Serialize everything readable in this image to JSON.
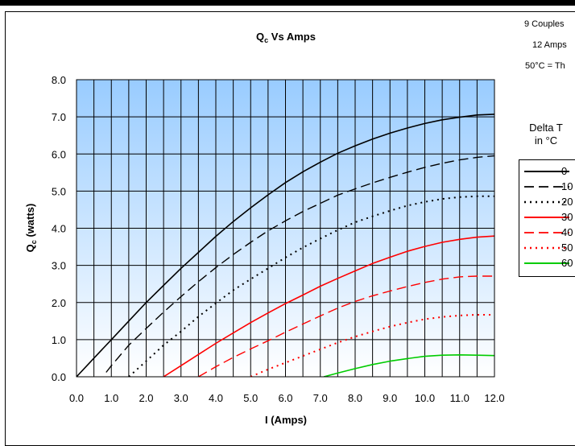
{
  "chart_data": {
    "type": "line",
    "title_main": "Q",
    "title_sub": "c",
    "title_rest": " Vs Amps",
    "xlabel": "I (Amps)",
    "ylabel_main": "Q",
    "ylabel_sub": "c",
    "ylabel_rest": " (watts)",
    "xlim": [
      0,
      12
    ],
    "ylim": [
      0,
      8
    ],
    "x_ticks": [
      "0.0",
      "1.0",
      "2.0",
      "3.0",
      "4.0",
      "5.0",
      "6.0",
      "7.0",
      "8.0",
      "9.0",
      "10.0",
      "11.0",
      "12.0"
    ],
    "y_ticks": [
      "0.0",
      "1.0",
      "2.0",
      "3.0",
      "4.0",
      "5.0",
      "6.0",
      "7.0",
      "8.0"
    ],
    "grid": true,
    "x_minor_step": 0.5,
    "background_gradient": [
      "#99ccff",
      "#ffffff"
    ],
    "series": [
      {
        "name": "0",
        "color": "#000000",
        "dash": "solid",
        "points": [
          [
            0,
            0
          ],
          [
            0.5,
            0.5
          ],
          [
            1,
            1
          ],
          [
            1.5,
            1.5
          ],
          [
            2,
            2
          ],
          [
            2.5,
            2.46
          ],
          [
            3,
            2.92
          ],
          [
            3.5,
            3.35
          ],
          [
            4,
            3.78
          ],
          [
            4.5,
            4.18
          ],
          [
            5,
            4.55
          ],
          [
            5.5,
            4.9
          ],
          [
            6,
            5.23
          ],
          [
            6.5,
            5.52
          ],
          [
            7,
            5.78
          ],
          [
            7.5,
            6.02
          ],
          [
            8,
            6.22
          ],
          [
            8.5,
            6.4
          ],
          [
            9,
            6.56
          ],
          [
            9.5,
            6.7
          ],
          [
            10,
            6.82
          ],
          [
            10.5,
            6.92
          ],
          [
            11,
            6.99
          ],
          [
            11.5,
            7.05
          ],
          [
            12,
            7.07
          ]
        ]
      },
      {
        "name": "10",
        "color": "#000000",
        "dash": "longdash",
        "points": [
          [
            0.85,
            0.12
          ],
          [
            1,
            0.3
          ],
          [
            1.5,
            0.85
          ],
          [
            2,
            1.3
          ],
          [
            2.5,
            1.74
          ],
          [
            3,
            2.16
          ],
          [
            3.5,
            2.56
          ],
          [
            4,
            2.94
          ],
          [
            4.5,
            3.29
          ],
          [
            5,
            3.62
          ],
          [
            5.5,
            3.93
          ],
          [
            6,
            4.2
          ],
          [
            6.5,
            4.45
          ],
          [
            7,
            4.67
          ],
          [
            7.5,
            4.89
          ],
          [
            8,
            5.06
          ],
          [
            8.5,
            5.22
          ],
          [
            9,
            5.37
          ],
          [
            9.5,
            5.51
          ],
          [
            10,
            5.64
          ],
          [
            10.5,
            5.75
          ],
          [
            11,
            5.84
          ],
          [
            11.5,
            5.91
          ],
          [
            12,
            5.95
          ]
        ]
      },
      {
        "name": "20",
        "color": "#000000",
        "dash": "dotted",
        "points": [
          [
            1.5,
            0
          ],
          [
            2,
            0.42
          ],
          [
            2.5,
            0.85
          ],
          [
            3,
            1.22
          ],
          [
            3.5,
            1.62
          ],
          [
            4,
            1.98
          ],
          [
            4.5,
            2.33
          ],
          [
            5,
            2.63
          ],
          [
            5.5,
            2.92
          ],
          [
            6,
            3.21
          ],
          [
            6.5,
            3.48
          ],
          [
            7,
            3.72
          ],
          [
            7.5,
            3.95
          ],
          [
            8,
            4.16
          ],
          [
            8.5,
            4.32
          ],
          [
            9,
            4.47
          ],
          [
            9.5,
            4.61
          ],
          [
            10,
            4.71
          ],
          [
            10.5,
            4.79
          ],
          [
            11,
            4.84
          ],
          [
            11.5,
            4.86
          ],
          [
            12,
            4.86
          ]
        ]
      },
      {
        "name": "30",
        "color": "#ff0000",
        "dash": "solid",
        "points": [
          [
            2.5,
            0
          ],
          [
            3,
            0.3
          ],
          [
            3.5,
            0.6
          ],
          [
            4,
            0.9
          ],
          [
            4.5,
            1.18
          ],
          [
            5,
            1.46
          ],
          [
            5.5,
            1.72
          ],
          [
            6,
            1.97
          ],
          [
            6.5,
            2.2
          ],
          [
            7,
            2.44
          ],
          [
            7.5,
            2.65
          ],
          [
            8,
            2.85
          ],
          [
            8.5,
            3.05
          ],
          [
            9,
            3.22
          ],
          [
            9.5,
            3.38
          ],
          [
            10,
            3.51
          ],
          [
            10.5,
            3.62
          ],
          [
            11,
            3.7
          ],
          [
            11.5,
            3.76
          ],
          [
            12,
            3.79
          ]
        ]
      },
      {
        "name": "40",
        "color": "#ff0000",
        "dash": "longdash",
        "points": [
          [
            3.5,
            0
          ],
          [
            4,
            0.27
          ],
          [
            4.5,
            0.52
          ],
          [
            5,
            0.75
          ],
          [
            5.5,
            0.97
          ],
          [
            6,
            1.2
          ],
          [
            6.5,
            1.42
          ],
          [
            7,
            1.64
          ],
          [
            7.5,
            1.85
          ],
          [
            8,
            2.03
          ],
          [
            8.5,
            2.18
          ],
          [
            9,
            2.31
          ],
          [
            9.5,
            2.43
          ],
          [
            10,
            2.54
          ],
          [
            10.5,
            2.63
          ],
          [
            11,
            2.69
          ],
          [
            11.5,
            2.71
          ],
          [
            12,
            2.71
          ]
        ]
      },
      {
        "name": "50",
        "color": "#ff0000",
        "dash": "dotted",
        "points": [
          [
            5,
            0
          ],
          [
            5.5,
            0.2
          ],
          [
            6,
            0.38
          ],
          [
            6.5,
            0.56
          ],
          [
            7,
            0.74
          ],
          [
            7.5,
            0.92
          ],
          [
            8,
            1.08
          ],
          [
            8.5,
            1.22
          ],
          [
            9,
            1.35
          ],
          [
            9.5,
            1.46
          ],
          [
            10,
            1.55
          ],
          [
            10.5,
            1.61
          ],
          [
            11,
            1.65
          ],
          [
            11.5,
            1.67
          ],
          [
            12,
            1.67
          ]
        ]
      },
      {
        "name": "60",
        "color": "#00cc00",
        "dash": "solid",
        "points": [
          [
            7.1,
            0
          ],
          [
            7.5,
            0.1
          ],
          [
            8,
            0.22
          ],
          [
            8.5,
            0.33
          ],
          [
            9,
            0.42
          ],
          [
            9.5,
            0.49
          ],
          [
            10,
            0.55
          ],
          [
            10.5,
            0.58
          ],
          [
            11,
            0.59
          ],
          [
            11.5,
            0.58
          ],
          [
            12,
            0.57
          ]
        ]
      }
    ],
    "annotations": [
      "9 Couples",
      "12 Amps",
      "50°C = Th"
    ],
    "legend": {
      "title_line1": "Delta T",
      "title_line2": "in °C",
      "placement": "right"
    }
  }
}
